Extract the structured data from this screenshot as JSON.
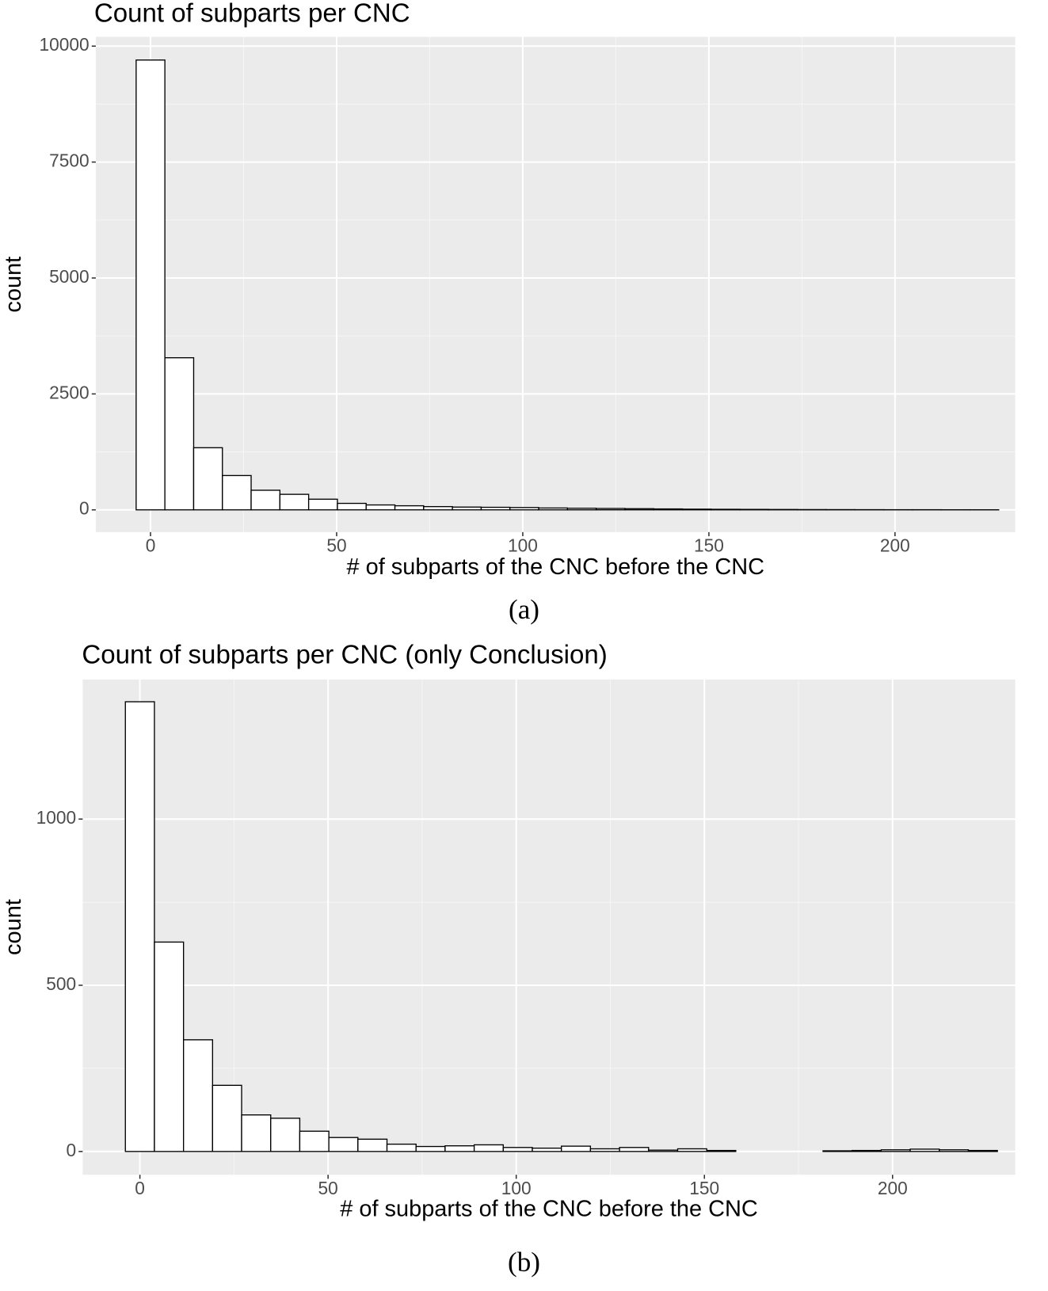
{
  "chart_data": [
    {
      "type": "histogram",
      "title": "Count of subparts per CNC",
      "x_label": "# of subparts of the CNC before the CNC",
      "y_label": "count",
      "caption": "(a)",
      "bins": [
        -3.86,
        3.86,
        11.59,
        19.31,
        27.03,
        34.76,
        42.48,
        50.21,
        57.93,
        65.66,
        73.38,
        81.1,
        88.83,
        96.55,
        104.28,
        112.0,
        119.72,
        127.45,
        135.17,
        142.9,
        150.62,
        158.34,
        166.07,
        173.79,
        181.52,
        189.24,
        196.97,
        204.69,
        212.41,
        220.14,
        227.86
      ],
      "values": [
        9700,
        3280,
        1340,
        740,
        423,
        335,
        230,
        140,
        106,
        88,
        70,
        60,
        55,
        50,
        40,
        35,
        30,
        25,
        20,
        15,
        12,
        10,
        8,
        6,
        5,
        4,
        3,
        3,
        2,
        2
      ],
      "color": "#ffffff",
      "edgecolor": "#000000",
      "xlim": [
        -14.7,
        232.3
      ],
      "ylim": [
        -480,
        10200
      ],
      "xticks": [
        0,
        50,
        100,
        150,
        200
      ],
      "yticks": [
        0,
        2500,
        5000,
        7500,
        10000
      ],
      "grid": true
    },
    {
      "type": "histogram",
      "title": "Count of subparts per CNC (only Conclusion)",
      "x_label": "# of subparts of the CNC before the CNC",
      "y_label": "count",
      "caption": "(b)",
      "bins": [
        -3.86,
        3.86,
        11.59,
        19.31,
        27.03,
        34.76,
        42.48,
        50.21,
        57.93,
        65.66,
        73.38,
        81.1,
        88.83,
        96.55,
        104.28,
        112.0,
        119.72,
        127.45,
        135.17,
        142.9,
        150.62,
        158.34,
        166.07,
        173.79,
        181.52,
        189.24,
        196.97,
        204.69,
        212.41,
        220.14,
        227.86
      ],
      "values": [
        1353,
        630,
        336,
        199,
        110,
        100,
        61,
        42,
        37,
        22,
        15,
        17,
        20,
        12,
        10,
        16,
        8,
        12,
        4,
        8,
        3,
        0,
        0,
        0,
        2,
        3,
        5,
        7,
        5,
        3
      ],
      "color": "#ffffff",
      "edgecolor": "#000000",
      "xlim": [
        -15.2,
        232.6
      ],
      "ylim": [
        -70,
        1420
      ],
      "xticks": [
        0,
        50,
        100,
        150,
        200
      ],
      "yticks": [
        0,
        500,
        1000
      ],
      "grid": true
    }
  ]
}
